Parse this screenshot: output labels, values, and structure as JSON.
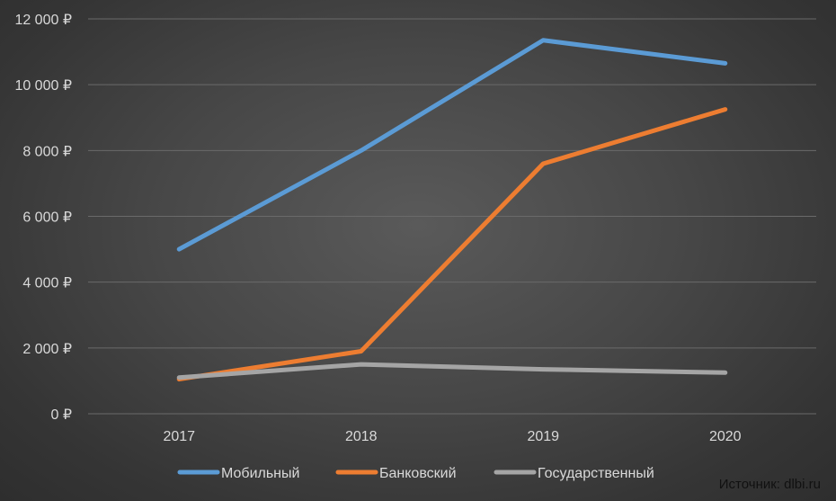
{
  "chart_data": {
    "type": "line",
    "categories": [
      "2017",
      "2018",
      "2019",
      "2020"
    ],
    "series": [
      {
        "name": "Мобильный",
        "values": [
          5000,
          8000,
          11350,
          10650
        ],
        "color": "#5b9bd5"
      },
      {
        "name": "Банковский",
        "values": [
          1050,
          1900,
          7600,
          9250
        ],
        "color": "#ed7d31"
      },
      {
        "name": "Государственный",
        "values": [
          1100,
          1500,
          1350,
          1250
        ],
        "color": "#a5a5a5"
      }
    ],
    "ylim": [
      0,
      12000
    ],
    "yticks": [
      0,
      2000,
      4000,
      6000,
      8000,
      10000,
      12000
    ],
    "ytick_labels": [
      "0 ₽",
      "2 000 ₽",
      "4 000 ₽",
      "6 000 ₽",
      "8 000 ₽",
      "10 000 ₽",
      "12 000 ₽"
    ],
    "grid": true,
    "legend_position": "bottom",
    "title": "",
    "xlabel": "",
    "ylabel": ""
  },
  "source_text": "Источник: dlbi.ru"
}
